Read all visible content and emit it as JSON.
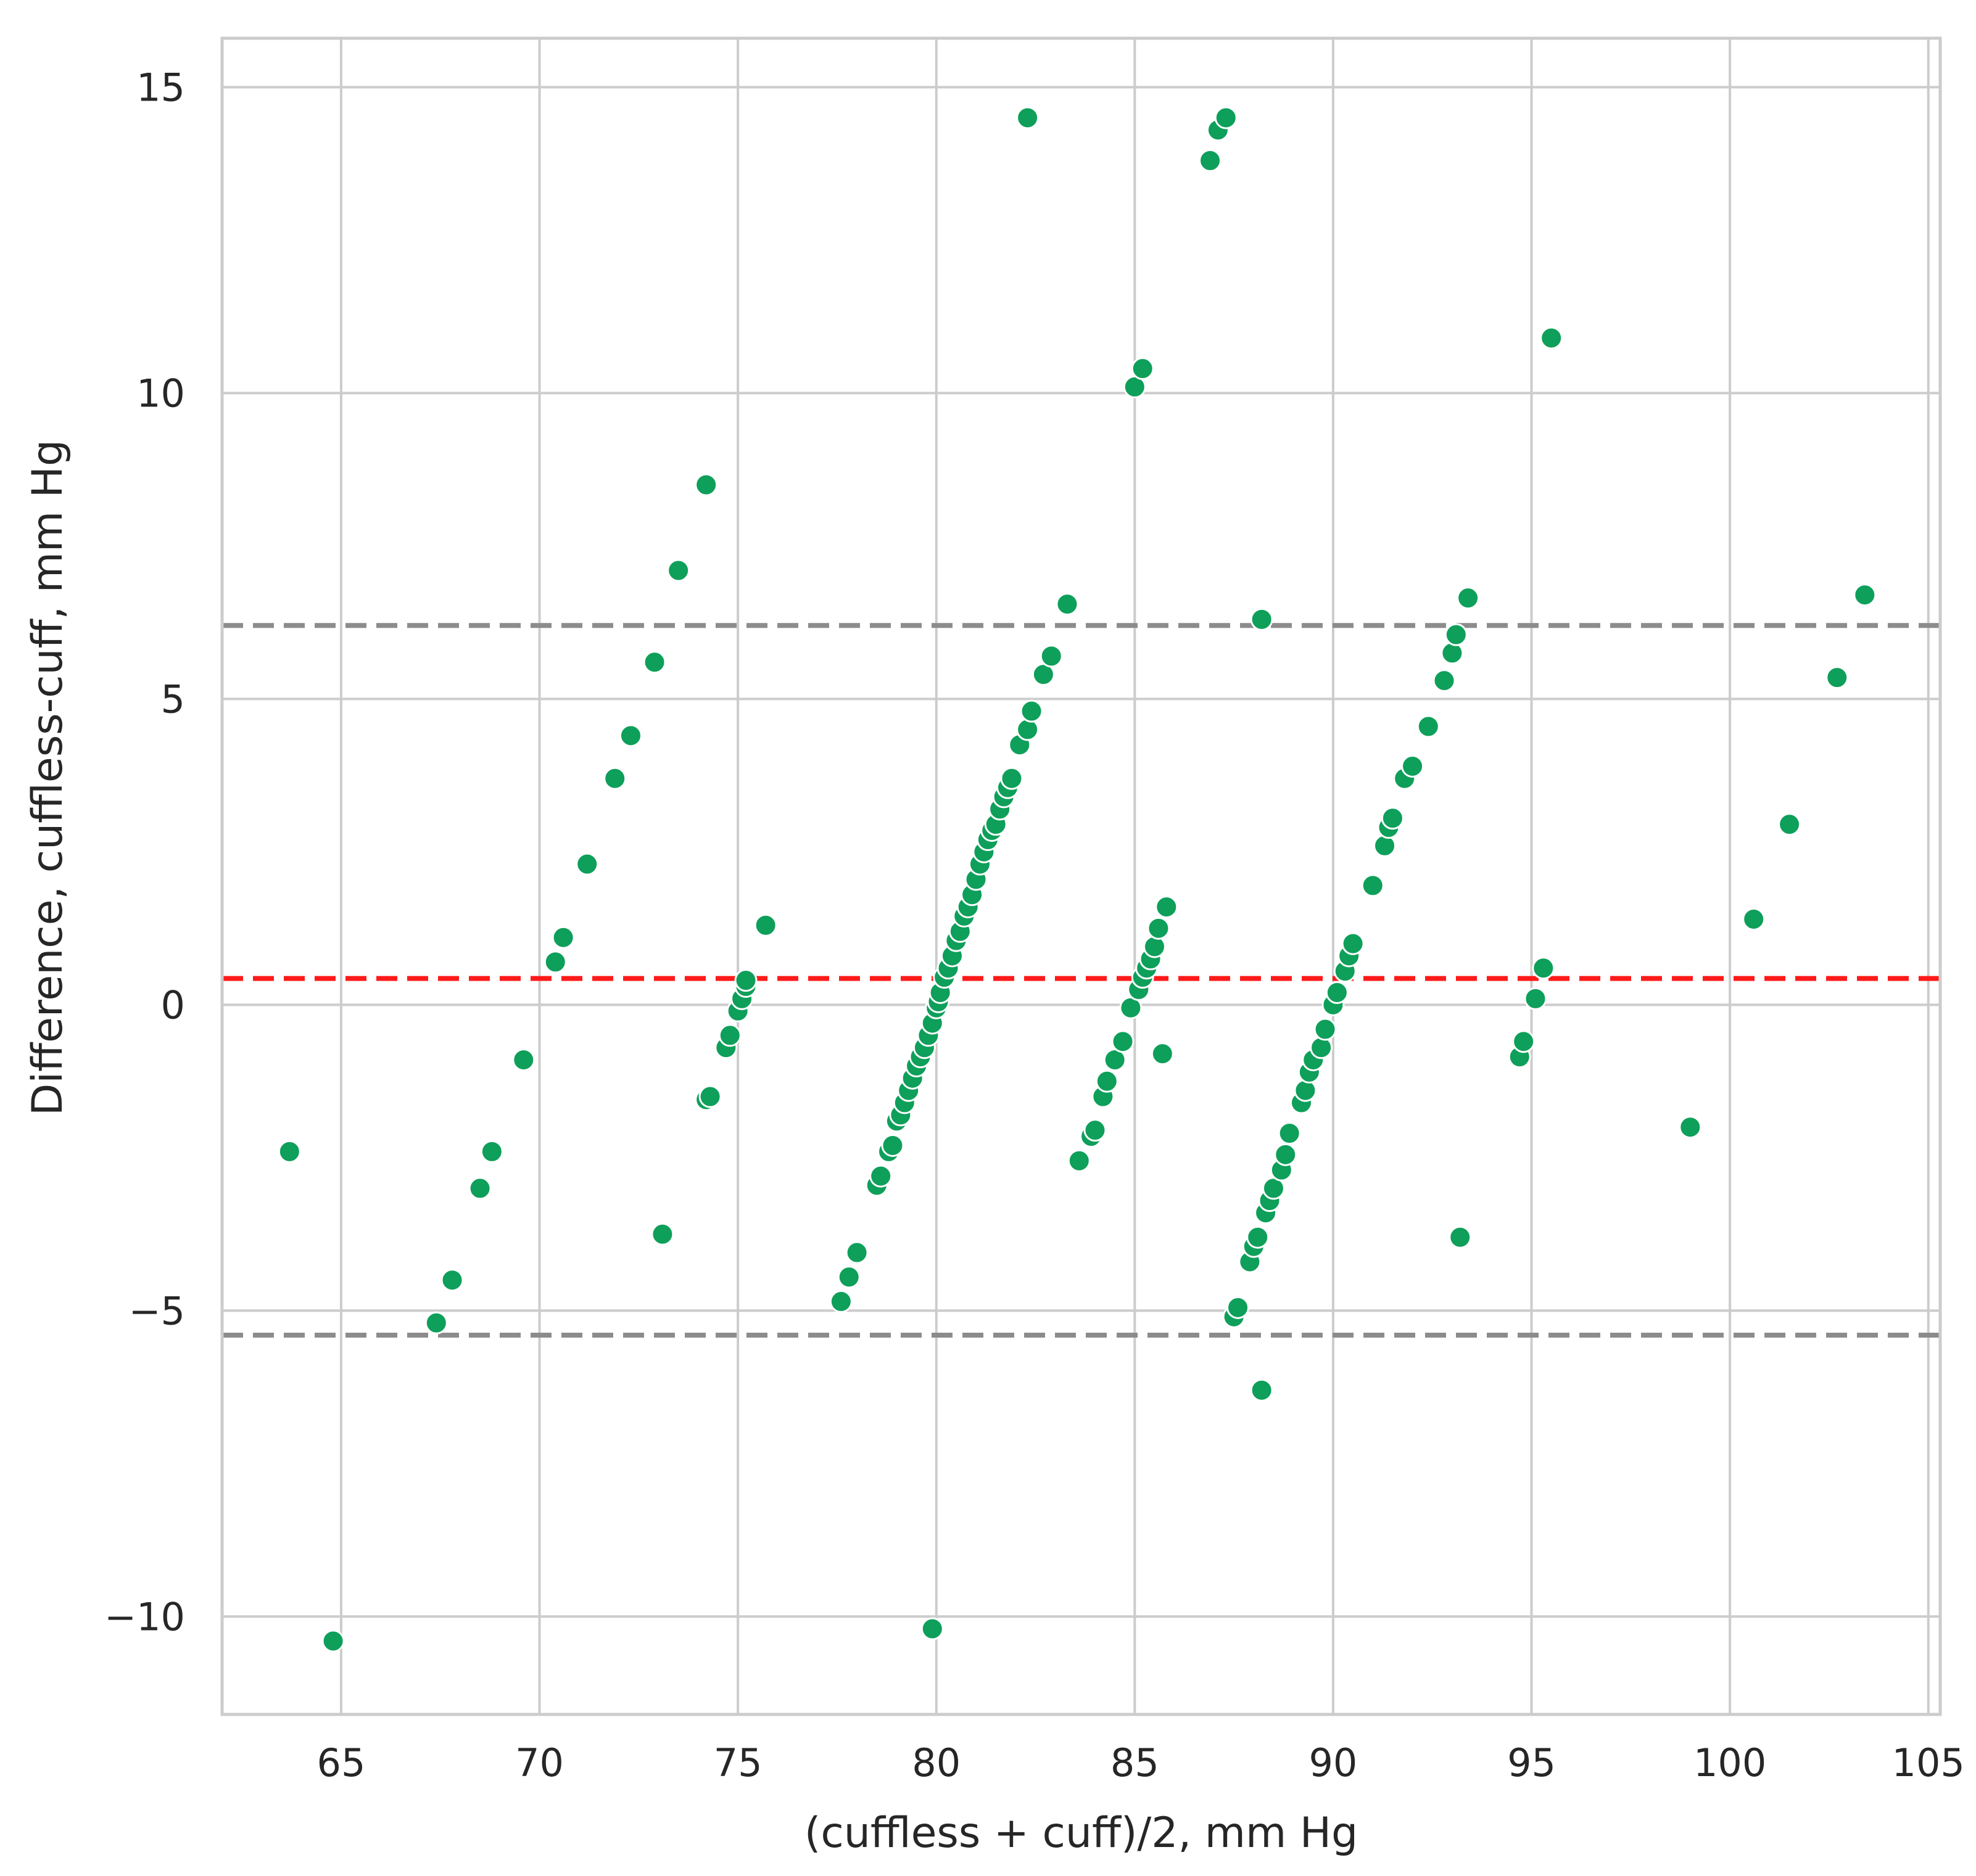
{
  "chart_data": {
    "type": "scatter",
    "title": "",
    "xlabel": "(cuffless + cuff)/2, mm Hg",
    "ylabel": "Difference, cuffless-cuff, mm Hg",
    "xlim": [
      62,
      105.3
    ],
    "ylim": [
      -11.6,
      15.8
    ],
    "xticks": [
      65,
      70,
      75,
      80,
      85,
      90,
      95,
      100,
      105
    ],
    "yticks": [
      -10,
      -5,
      0,
      5,
      10,
      15
    ],
    "grid": true,
    "legend": "none",
    "colors": {
      "points": "#0e9f5a",
      "point_edge": "#ffffff",
      "mean_line": "#ff1a1a",
      "limit_lines": "#8c8c8c",
      "grid": "#cccccc",
      "frame": "#cccccc",
      "text": "#262626"
    },
    "reference_lines": [
      {
        "role": "mean",
        "y": 0.43,
        "style": "dashed"
      },
      {
        "role": "upper-limit",
        "y": 6.2,
        "style": "dashed"
      },
      {
        "role": "lower-limit",
        "y": -5.4,
        "style": "dashed"
      }
    ],
    "points": [
      [
        63.7,
        -2.4
      ],
      [
        64.8,
        -10.4
      ],
      [
        67.4,
        -5.2
      ],
      [
        67.8,
        -4.5
      ],
      [
        68.5,
        -3.0
      ],
      [
        68.8,
        -2.4
      ],
      [
        69.6,
        -0.9
      ],
      [
        70.4,
        0.7
      ],
      [
        70.6,
        1.1
      ],
      [
        71.2,
        2.3
      ],
      [
        71.9,
        3.7
      ],
      [
        72.3,
        4.4
      ],
      [
        72.9,
        5.6
      ],
      [
        73.1,
        -3.75
      ],
      [
        73.5,
        7.1
      ],
      [
        74.2,
        8.5
      ],
      [
        74.2,
        -1.55
      ],
      [
        74.3,
        -1.5
      ],
      [
        74.7,
        -0.7
      ],
      [
        74.8,
        -0.5
      ],
      [
        75.0,
        -0.1
      ],
      [
        75.1,
        0.1
      ],
      [
        75.2,
        0.3
      ],
      [
        75.2,
        0.4
      ],
      [
        75.7,
        1.3
      ],
      [
        77.6,
        -4.85
      ],
      [
        77.8,
        -4.45
      ],
      [
        78.0,
        -4.05
      ],
      [
        78.5,
        -2.95
      ],
      [
        78.6,
        -2.8
      ],
      [
        78.8,
        -2.4
      ],
      [
        78.9,
        -2.3
      ],
      [
        79.0,
        -1.9
      ],
      [
        79.1,
        -1.8
      ],
      [
        79.2,
        -1.6
      ],
      [
        79.3,
        -1.4
      ],
      [
        79.4,
        -1.2
      ],
      [
        79.5,
        -1.0
      ],
      [
        79.6,
        -0.85
      ],
      [
        79.7,
        -0.7
      ],
      [
        79.8,
        -0.5
      ],
      [
        79.9,
        -0.3
      ],
      [
        80.0,
        -0.05
      ],
      [
        80.05,
        0.05
      ],
      [
        80.1,
        0.2
      ],
      [
        80.2,
        0.45
      ],
      [
        80.3,
        0.6
      ],
      [
        80.4,
        0.8
      ],
      [
        80.5,
        1.05
      ],
      [
        80.6,
        1.2
      ],
      [
        80.7,
        1.45
      ],
      [
        80.8,
        1.6
      ],
      [
        80.9,
        1.8
      ],
      [
        81.0,
        2.05
      ],
      [
        81.1,
        2.3
      ],
      [
        81.2,
        2.5
      ],
      [
        81.3,
        2.7
      ],
      [
        81.4,
        2.85
      ],
      [
        81.5,
        2.95
      ],
      [
        81.6,
        3.2
      ],
      [
        81.7,
        3.4
      ],
      [
        81.8,
        3.55
      ],
      [
        81.9,
        3.7
      ],
      [
        82.1,
        4.25
      ],
      [
        82.3,
        4.5
      ],
      [
        82.4,
        4.8
      ],
      [
        82.7,
        5.4
      ],
      [
        82.9,
        5.7
      ],
      [
        83.3,
        6.55
      ],
      [
        82.3,
        14.5
      ],
      [
        79.9,
        -10.2
      ],
      [
        83.6,
        -2.55
      ],
      [
        83.9,
        -2.15
      ],
      [
        84.0,
        -2.05
      ],
      [
        84.2,
        -1.5
      ],
      [
        84.3,
        -1.25
      ],
      [
        84.5,
        -0.9
      ],
      [
        84.7,
        -0.6
      ],
      [
        84.9,
        -0.05
      ],
      [
        85.0,
        10.1
      ],
      [
        85.2,
        10.4
      ],
      [
        85.1,
        0.25
      ],
      [
        85.2,
        0.45
      ],
      [
        85.3,
        0.6
      ],
      [
        85.4,
        0.75
      ],
      [
        85.5,
        0.95
      ],
      [
        85.6,
        1.25
      ],
      [
        85.7,
        -0.8
      ],
      [
        85.8,
        1.6
      ],
      [
        86.9,
        13.8
      ],
      [
        87.1,
        14.3
      ],
      [
        87.3,
        14.5
      ],
      [
        87.5,
        -5.1
      ],
      [
        87.6,
        -4.95
      ],
      [
        87.9,
        -4.2
      ],
      [
        88.0,
        -3.95
      ],
      [
        88.1,
        -3.8
      ],
      [
        88.2,
        -6.3
      ],
      [
        88.2,
        6.3
      ],
      [
        88.3,
        -3.4
      ],
      [
        88.4,
        -3.2
      ],
      [
        88.5,
        -3.0
      ],
      [
        88.7,
        -2.7
      ],
      [
        88.8,
        -2.45
      ],
      [
        88.9,
        -2.1
      ],
      [
        89.2,
        -1.6
      ],
      [
        89.3,
        -1.4
      ],
      [
        89.4,
        -1.1
      ],
      [
        89.5,
        -0.9
      ],
      [
        89.7,
        -0.7
      ],
      [
        89.8,
        -0.4
      ],
      [
        90.0,
        0.0
      ],
      [
        90.1,
        0.2
      ],
      [
        90.3,
        0.55
      ],
      [
        90.4,
        0.8
      ],
      [
        90.5,
        1.0
      ],
      [
        91.0,
        1.95
      ],
      [
        91.3,
        2.6
      ],
      [
        91.4,
        2.9
      ],
      [
        91.5,
        3.05
      ],
      [
        91.8,
        3.7
      ],
      [
        92.0,
        3.9
      ],
      [
        92.4,
        4.55
      ],
      [
        92.8,
        5.3
      ],
      [
        93.0,
        5.75
      ],
      [
        93.1,
        6.05
      ],
      [
        93.4,
        6.65
      ],
      [
        93.2,
        -3.8
      ],
      [
        94.7,
        -0.85
      ],
      [
        94.8,
        -0.6
      ],
      [
        95.1,
        0.1
      ],
      [
        95.3,
        0.6
      ],
      [
        95.5,
        10.9
      ],
      [
        99.0,
        -2.0
      ],
      [
        100.6,
        1.4
      ],
      [
        101.5,
        2.95
      ],
      [
        102.7,
        5.35
      ],
      [
        103.4,
        6.7
      ]
    ]
  }
}
